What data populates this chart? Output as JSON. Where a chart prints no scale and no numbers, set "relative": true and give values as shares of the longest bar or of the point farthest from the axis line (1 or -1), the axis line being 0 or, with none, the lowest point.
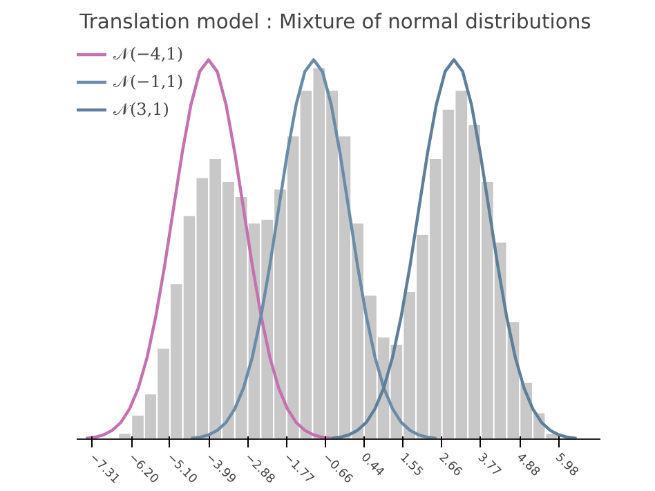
{
  "chart_data": {
    "type": "histogram",
    "title": "Translation model : Mixture of  normal distributions",
    "relative": true,
    "legend": "top left",
    "xlim": [
      -7.76,
      7.18
    ],
    "xticks": [
      {
        "value": -7.31,
        "label": "−7.31"
      },
      {
        "value": -6.2,
        "label": "−6.20"
      },
      {
        "value": -5.1,
        "label": "−5.10"
      },
      {
        "value": -3.99,
        "label": "−3.99"
      },
      {
        "value": -2.88,
        "label": "−2.88"
      },
      {
        "value": -1.77,
        "label": "−1.77"
      },
      {
        "value": -0.66,
        "label": "−0.66"
      },
      0.44,
      1.55,
      2.66,
      3.77,
      4.88,
      5.98
    ],
    "bins": [
      -6.57,
      -6.2,
      -5.83,
      -5.47,
      -5.1,
      -4.73,
      -4.36,
      -3.99,
      -3.62,
      -3.25,
      -2.88,
      -2.51,
      -2.14,
      -1.77,
      -1.4,
      -1.03,
      -0.66,
      -0.29,
      0.07,
      0.44,
      0.81,
      1.18,
      1.55,
      1.92,
      2.29,
      2.66,
      3.03,
      3.4,
      3.77,
      4.14,
      4.51,
      4.88,
      5.25,
      5.61,
      5.98
    ],
    "series": [
      {
        "color": "#c8c8c8",
        "values": [
          0.016,
          0.064,
          0.12,
          0.24,
          0.41,
          0.59,
          0.69,
          0.74,
          0.68,
          0.64,
          0.57,
          0.58,
          0.66,
          0.8,
          0.92,
          0.98,
          0.92,
          0.8,
          0.57,
          0.38,
          0.27,
          0.25,
          0.39,
          0.54,
          0.74,
          0.87,
          0.92,
          0.83,
          0.68,
          0.52,
          0.31,
          0.15,
          0.07,
          0.016
        ]
      },
      {
        "type": "line",
        "name": "𝒩(−4,1)",
        "color": "#c471b0",
        "x": [
          -7.5,
          -7.25,
          -7,
          -6.75,
          -6.5,
          -6.25,
          -6,
          -5.75,
          -5.5,
          -5.25,
          -5,
          -4.75,
          -4.5,
          -4.25,
          -4,
          -3.75,
          -3.5,
          -3.25,
          -3,
          -2.75,
          -2.5,
          -2.25,
          -2,
          -1.75,
          -1.5,
          -1.25,
          -1,
          -0.75,
          -0.5
        ],
        "values": [
          0.002,
          0.005,
          0.011,
          0.023,
          0.044,
          0.08,
          0.135,
          0.216,
          0.325,
          0.458,
          0.607,
          0.755,
          0.882,
          0.969,
          1,
          0.969,
          0.882,
          0.755,
          0.607,
          0.458,
          0.325,
          0.216,
          0.135,
          0.08,
          0.044,
          0.023,
          0.011,
          0.005,
          0.002
        ]
      },
      {
        "type": "line",
        "name": "𝒩(−1,1)",
        "color": "#6a8ca8",
        "x": [
          -4.5,
          -4.25,
          -4,
          -3.75,
          -3.5,
          -3.25,
          -3,
          -2.75,
          -2.5,
          -2.25,
          -2,
          -1.75,
          -1.5,
          -1.25,
          -1,
          -0.75,
          -0.5,
          -0.25,
          0,
          0.25,
          0.5,
          0.75,
          1,
          1.25,
          1.5,
          1.75,
          2,
          2.25,
          2.5
        ],
        "values": [
          0.002,
          0.005,
          0.011,
          0.023,
          0.044,
          0.08,
          0.135,
          0.216,
          0.325,
          0.458,
          0.607,
          0.755,
          0.882,
          0.969,
          1,
          0.969,
          0.882,
          0.755,
          0.607,
          0.458,
          0.325,
          0.216,
          0.135,
          0.08,
          0.044,
          0.023,
          0.011,
          0.005,
          0.002
        ]
      },
      {
        "type": "line",
        "name": "𝒩(3,1)",
        "color": "#5e7f99",
        "x": [
          -0.5,
          -0.25,
          0,
          0.25,
          0.5,
          0.75,
          1,
          1.25,
          1.5,
          1.75,
          2,
          2.25,
          2.5,
          2.75,
          3,
          3.25,
          3.5,
          3.75,
          4,
          4.25,
          4.5,
          4.75,
          5,
          5.25,
          5.5,
          5.75,
          6,
          6.25,
          6.5
        ],
        "values": [
          0.002,
          0.005,
          0.011,
          0.023,
          0.044,
          0.08,
          0.135,
          0.216,
          0.325,
          0.458,
          0.607,
          0.755,
          0.882,
          0.969,
          1,
          0.969,
          0.882,
          0.755,
          0.607,
          0.458,
          0.325,
          0.216,
          0.135,
          0.08,
          0.044,
          0.023,
          0.011,
          0.005,
          0.002
        ]
      }
    ]
  }
}
